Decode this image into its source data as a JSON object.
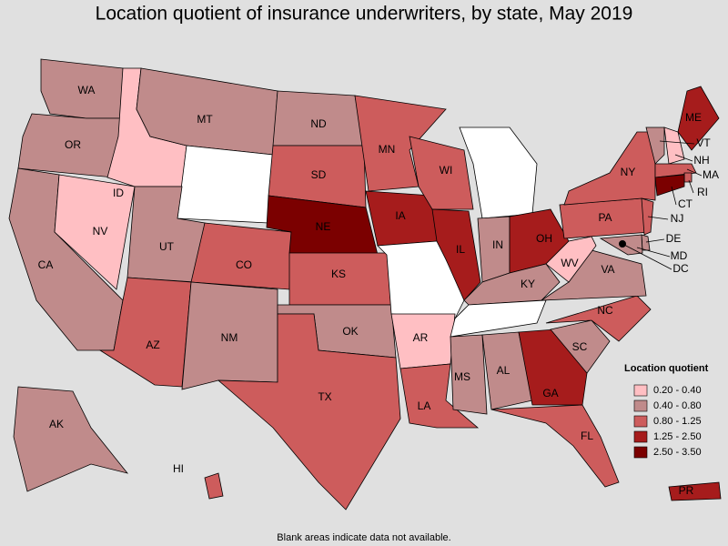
{
  "title": "Location quotient of insurance underwriters, by state, May 2019",
  "note": "Blank areas indicate data not available.",
  "legend": {
    "title": "Location quotient",
    "items": [
      {
        "label": "0.20 - 0.40",
        "color": "#ffbfc3"
      },
      {
        "label": "0.40 - 0.80",
        "color": "#c08b8b"
      },
      {
        "label": "0.80 - 1.25",
        "color": "#cd5c5c"
      },
      {
        "label": "1.25 - 2.50",
        "color": "#a61c1c"
      },
      {
        "label": "2.50 - 3.50",
        "color": "#7b0000"
      }
    ]
  },
  "blank_color": "#ffffff",
  "states": [
    {
      "label": "WA",
      "class": 1
    },
    {
      "label": "OR",
      "class": 1
    },
    {
      "label": "CA",
      "class": 1
    },
    {
      "label": "NV",
      "class": 0
    },
    {
      "label": "ID",
      "class": 0
    },
    {
      "label": "MT",
      "class": 1
    },
    {
      "class": null
    },
    {
      "label": "UT",
      "class": 1
    },
    {
      "label": "CO",
      "class": 2
    },
    {
      "label": "AZ",
      "class": 2
    },
    {
      "label": "NM",
      "class": 1
    },
    {
      "label": "ND",
      "class": 1
    },
    {
      "label": "SD",
      "class": 2
    },
    {
      "label": "NE",
      "class": 4
    },
    {
      "label": "KS",
      "class": 2
    },
    {
      "label": "OK",
      "class": 1
    },
    {
      "label": "TX",
      "class": 2
    },
    {
      "label": "MN",
      "class": 2
    },
    {
      "label": "IA",
      "class": 3
    },
    {
      "class": null
    },
    {
      "label": "AR",
      "class": 0
    },
    {
      "label": "LA",
      "class": 2
    },
    {
      "label": "WI",
      "class": 2
    },
    {
      "label": "IL",
      "class": 3
    },
    {
      "class": null
    },
    {
      "label": "IN",
      "class": 1
    },
    {
      "label": "OH",
      "class": 3
    },
    {
      "label": "KY",
      "class": 1
    },
    {
      "class": null
    },
    {
      "label": "MS",
      "class": 1
    },
    {
      "label": "AL",
      "class": 1
    },
    {
      "label": "GA",
      "class": 3
    },
    {
      "label": "FL",
      "class": 2
    },
    {
      "label": "SC",
      "class": 1
    },
    {
      "label": "NC",
      "class": 2
    },
    {
      "label": "VA",
      "class": 1
    },
    {
      "label": "WV",
      "class": 0
    },
    {
      "label": "PA",
      "class": 2
    },
    {
      "label": "NY",
      "class": 2
    },
    {
      "label": "VT",
      "class": 1
    },
    {
      "label": "NH",
      "class": 0
    },
    {
      "label": "ME",
      "class": 3
    },
    {
      "label": "MA",
      "class": 2
    },
    {
      "label": "RI",
      "class": 2
    },
    {
      "label": "CT",
      "class": 4
    },
    {
      "label": "NJ",
      "class": 2
    },
    {
      "label": "DE",
      "class": 1
    },
    {
      "label": "MD",
      "class": 1
    },
    {
      "label": "DC",
      "class": 4
    },
    {
      "label": "AK",
      "class": 1
    },
    {
      "label": "HI",
      "class": 2
    },
    {
      "label": "PR",
      "class": 3
    }
  ]
}
